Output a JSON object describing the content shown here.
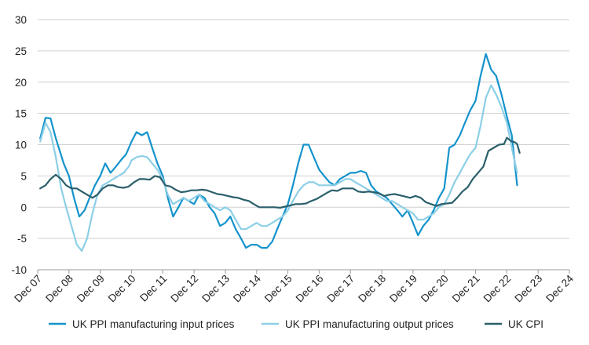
{
  "chart_data": {
    "type": "line",
    "title": "",
    "xlabel": "",
    "ylabel": "",
    "ylim": [
      -10,
      30
    ],
    "yticks": [
      -10,
      -5,
      0,
      5,
      10,
      15,
      20,
      25,
      30
    ],
    "xlim": [
      2007.92,
      2024.92
    ],
    "xticks": [
      {
        "label": "Dec 07",
        "x": 2007.92
      },
      {
        "label": "Dec 08",
        "x": 2008.92
      },
      {
        "label": "Dec 09",
        "x": 2009.92
      },
      {
        "label": "Dec 10",
        "x": 2010.92
      },
      {
        "label": "Dec 11",
        "x": 2011.92
      },
      {
        "label": "Dec 12",
        "x": 2012.92
      },
      {
        "label": "Dec 13",
        "x": 2013.92
      },
      {
        "label": "Dec 14",
        "x": 2014.92
      },
      {
        "label": "Dec 15",
        "x": 2015.92
      },
      {
        "label": "Dec 16",
        "x": 2016.92
      },
      {
        "label": "Dec 17",
        "x": 2017.92
      },
      {
        "label": "Dec 18",
        "x": 2018.92
      },
      {
        "label": "Dec 19",
        "x": 2019.92
      },
      {
        "label": "Dec 20",
        "x": 2020.92
      },
      {
        "label": "Dec 21",
        "x": 2021.92
      },
      {
        "label": "Dec 22",
        "x": 2022.92
      },
      {
        "label": "Dec 23",
        "x": 2023.92
      },
      {
        "label": "Dec 24",
        "x": 2024.92
      }
    ],
    "grid": "horizontal",
    "legend_position": "bottom",
    "series": [
      {
        "name": "UK PPI  manufacturing input prices",
        "color": "#1493cc",
        "points": [
          [
            2008.0,
            11.0
          ],
          [
            2008.17,
            14.3
          ],
          [
            2008.33,
            14.2
          ],
          [
            2008.5,
            11.0
          ],
          [
            2008.75,
            7.0
          ],
          [
            2008.92,
            5.0
          ],
          [
            2009.08,
            1.5
          ],
          [
            2009.25,
            -1.5
          ],
          [
            2009.42,
            -0.5
          ],
          [
            2009.58,
            1.5
          ],
          [
            2009.75,
            3.5
          ],
          [
            2009.92,
            5.0
          ],
          [
            2010.08,
            7.0
          ],
          [
            2010.25,
            5.5
          ],
          [
            2010.42,
            6.5
          ],
          [
            2010.58,
            7.5
          ],
          [
            2010.75,
            8.5
          ],
          [
            2010.92,
            10.5
          ],
          [
            2011.08,
            12.0
          ],
          [
            2011.25,
            11.5
          ],
          [
            2011.42,
            12.0
          ],
          [
            2011.58,
            9.5
          ],
          [
            2011.75,
            7.0
          ],
          [
            2011.92,
            5.0
          ],
          [
            2012.08,
            1.5
          ],
          [
            2012.25,
            -1.5
          ],
          [
            2012.42,
            0.0
          ],
          [
            2012.58,
            1.5
          ],
          [
            2012.75,
            1.0
          ],
          [
            2012.92,
            0.5
          ],
          [
            2013.08,
            2.0
          ],
          [
            2013.25,
            1.5
          ],
          [
            2013.42,
            0.0
          ],
          [
            2013.58,
            -1.0
          ],
          [
            2013.75,
            -3.0
          ],
          [
            2013.92,
            -2.5
          ],
          [
            2014.08,
            -1.5
          ],
          [
            2014.25,
            -3.5
          ],
          [
            2014.42,
            -5.0
          ],
          [
            2014.58,
            -6.5
          ],
          [
            2014.75,
            -6.0
          ],
          [
            2014.92,
            -6.0
          ],
          [
            2015.08,
            -6.5
          ],
          [
            2015.25,
            -6.5
          ],
          [
            2015.42,
            -5.5
          ],
          [
            2015.58,
            -3.5
          ],
          [
            2015.75,
            -1.5
          ],
          [
            2015.92,
            0.5
          ],
          [
            2016.08,
            3.5
          ],
          [
            2016.25,
            7.0
          ],
          [
            2016.42,
            10.0
          ],
          [
            2016.58,
            10.0
          ],
          [
            2016.75,
            8.0
          ],
          [
            2016.92,
            6.0
          ],
          [
            2017.08,
            5.0
          ],
          [
            2017.25,
            4.0
          ],
          [
            2017.42,
            3.5
          ],
          [
            2017.58,
            4.5
          ],
          [
            2017.75,
            5.0
          ],
          [
            2017.92,
            5.5
          ],
          [
            2018.08,
            5.5
          ],
          [
            2018.25,
            5.8
          ],
          [
            2018.42,
            5.5
          ],
          [
            2018.58,
            3.5
          ],
          [
            2018.75,
            2.5
          ],
          [
            2018.92,
            2.0
          ],
          [
            2019.08,
            1.5
          ],
          [
            2019.25,
            0.5
          ],
          [
            2019.42,
            -0.5
          ],
          [
            2019.58,
            -1.5
          ],
          [
            2019.75,
            -0.5
          ],
          [
            2019.92,
            -2.5
          ],
          [
            2020.08,
            -4.5
          ],
          [
            2020.25,
            -3.0
          ],
          [
            2020.42,
            -2.0
          ],
          [
            2020.58,
            -0.5
          ],
          [
            2020.75,
            1.5
          ],
          [
            2020.92,
            3.0
          ],
          [
            2021.08,
            9.5
          ],
          [
            2021.25,
            10.0
          ],
          [
            2021.42,
            11.5
          ],
          [
            2021.58,
            13.5
          ],
          [
            2021.75,
            15.5
          ],
          [
            2021.92,
            17.0
          ],
          [
            2022.08,
            21.0
          ],
          [
            2022.25,
            24.5
          ],
          [
            2022.42,
            22.0
          ],
          [
            2022.58,
            21.0
          ],
          [
            2022.75,
            18.0
          ],
          [
            2022.92,
            14.5
          ],
          [
            2023.08,
            11.5
          ],
          [
            2023.25,
            3.5
          ]
        ]
      },
      {
        "name": "UK PPI  manufacturing output prices",
        "color": "#8ccfe6",
        "points": [
          [
            2008.0,
            10.5
          ],
          [
            2008.17,
            13.5
          ],
          [
            2008.33,
            12.0
          ],
          [
            2008.5,
            8.0
          ],
          [
            2008.67,
            3.0
          ],
          [
            2008.83,
            0.0
          ],
          [
            2009.0,
            -3.0
          ],
          [
            2009.17,
            -6.0
          ],
          [
            2009.33,
            -7.0
          ],
          [
            2009.5,
            -5.0
          ],
          [
            2009.67,
            -1.0
          ],
          [
            2009.83,
            2.0
          ],
          [
            2010.0,
            3.5
          ],
          [
            2010.17,
            4.0
          ],
          [
            2010.33,
            4.5
          ],
          [
            2010.5,
            5.0
          ],
          [
            2010.67,
            5.5
          ],
          [
            2010.83,
            6.5
          ],
          [
            2010.92,
            7.5
          ],
          [
            2011.08,
            8.0
          ],
          [
            2011.25,
            8.2
          ],
          [
            2011.42,
            8.0
          ],
          [
            2011.58,
            7.0
          ],
          [
            2011.75,
            6.0
          ],
          [
            2011.92,
            4.5
          ],
          [
            2012.08,
            2.0
          ],
          [
            2012.25,
            0.5
          ],
          [
            2012.42,
            1.0
          ],
          [
            2012.58,
            1.5
          ],
          [
            2012.75,
            1.0
          ],
          [
            2012.92,
            1.5
          ],
          [
            2013.08,
            2.0
          ],
          [
            2013.25,
            1.0
          ],
          [
            2013.42,
            0.5
          ],
          [
            2013.58,
            0.0
          ],
          [
            2013.75,
            -0.5
          ],
          [
            2013.92,
            0.0
          ],
          [
            2014.08,
            -0.5
          ],
          [
            2014.25,
            -2.0
          ],
          [
            2014.42,
            -3.5
          ],
          [
            2014.58,
            -3.5
          ],
          [
            2014.75,
            -3.0
          ],
          [
            2014.92,
            -2.5
          ],
          [
            2015.08,
            -3.0
          ],
          [
            2015.25,
            -3.0
          ],
          [
            2015.42,
            -2.5
          ],
          [
            2015.58,
            -2.0
          ],
          [
            2015.75,
            -1.5
          ],
          [
            2015.92,
            -0.5
          ],
          [
            2016.08,
            1.0
          ],
          [
            2016.25,
            2.5
          ],
          [
            2016.42,
            3.5
          ],
          [
            2016.58,
            4.0
          ],
          [
            2016.75,
            4.0
          ],
          [
            2016.92,
            3.5
          ],
          [
            2017.08,
            3.5
          ],
          [
            2017.25,
            3.5
          ],
          [
            2017.42,
            3.5
          ],
          [
            2017.58,
            4.0
          ],
          [
            2017.75,
            4.5
          ],
          [
            2017.92,
            4.5
          ],
          [
            2018.08,
            4.0
          ],
          [
            2018.25,
            3.5
          ],
          [
            2018.42,
            3.0
          ],
          [
            2018.58,
            2.5
          ],
          [
            2018.75,
            2.0
          ],
          [
            2018.92,
            1.5
          ],
          [
            2019.08,
            1.0
          ],
          [
            2019.25,
            1.0
          ],
          [
            2019.42,
            0.5
          ],
          [
            2019.58,
            0.0
          ],
          [
            2019.75,
            -0.5
          ],
          [
            2019.92,
            -1.0
          ],
          [
            2020.08,
            -2.0
          ],
          [
            2020.25,
            -2.0
          ],
          [
            2020.42,
            -1.5
          ],
          [
            2020.58,
            -1.0
          ],
          [
            2020.75,
            0.0
          ],
          [
            2020.92,
            0.5
          ],
          [
            2021.08,
            2.0
          ],
          [
            2021.25,
            4.0
          ],
          [
            2021.42,
            5.5
          ],
          [
            2021.58,
            7.0
          ],
          [
            2021.75,
            8.5
          ],
          [
            2021.92,
            9.5
          ],
          [
            2022.08,
            13.0
          ],
          [
            2022.25,
            17.5
          ],
          [
            2022.42,
            19.5
          ],
          [
            2022.58,
            18.0
          ],
          [
            2022.75,
            16.0
          ],
          [
            2022.92,
            13.5
          ],
          [
            2023.08,
            9.5
          ],
          [
            2023.25,
            5.5
          ]
        ]
      },
      {
        "name": "UK CPI",
        "color": "#2a5f6b",
        "points": [
          [
            2008.0,
            3.0
          ],
          [
            2008.17,
            3.5
          ],
          [
            2008.33,
            4.5
          ],
          [
            2008.5,
            5.2
          ],
          [
            2008.67,
            4.5
          ],
          [
            2008.83,
            3.5
          ],
          [
            2009.0,
            3.0
          ],
          [
            2009.17,
            3.0
          ],
          [
            2009.33,
            2.5
          ],
          [
            2009.5,
            2.0
          ],
          [
            2009.67,
            1.5
          ],
          [
            2009.83,
            2.0
          ],
          [
            2010.0,
            3.0
          ],
          [
            2010.17,
            3.5
          ],
          [
            2010.33,
            3.5
          ],
          [
            2010.5,
            3.2
          ],
          [
            2010.67,
            3.1
          ],
          [
            2010.83,
            3.3
          ],
          [
            2011.0,
            4.0
          ],
          [
            2011.17,
            4.5
          ],
          [
            2011.33,
            4.5
          ],
          [
            2011.5,
            4.4
          ],
          [
            2011.67,
            5.0
          ],
          [
            2011.83,
            4.8
          ],
          [
            2012.0,
            3.5
          ],
          [
            2012.17,
            3.3
          ],
          [
            2012.33,
            2.8
          ],
          [
            2012.5,
            2.4
          ],
          [
            2012.67,
            2.5
          ],
          [
            2012.83,
            2.7
          ],
          [
            2013.0,
            2.7
          ],
          [
            2013.17,
            2.8
          ],
          [
            2013.33,
            2.7
          ],
          [
            2013.5,
            2.4
          ],
          [
            2013.67,
            2.1
          ],
          [
            2013.83,
            2.0
          ],
          [
            2014.0,
            1.8
          ],
          [
            2014.17,
            1.6
          ],
          [
            2014.33,
            1.5
          ],
          [
            2014.5,
            1.2
          ],
          [
            2014.67,
            1.0
          ],
          [
            2014.83,
            0.5
          ],
          [
            2015.0,
            0.0
          ],
          [
            2015.17,
            0.0
          ],
          [
            2015.33,
            0.0
          ],
          [
            2015.5,
            0.0
          ],
          [
            2015.67,
            -0.1
          ],
          [
            2015.83,
            0.1
          ],
          [
            2016.0,
            0.3
          ],
          [
            2016.17,
            0.5
          ],
          [
            2016.33,
            0.5
          ],
          [
            2016.5,
            0.6
          ],
          [
            2016.67,
            1.0
          ],
          [
            2016.83,
            1.3
          ],
          [
            2017.0,
            1.8
          ],
          [
            2017.17,
            2.3
          ],
          [
            2017.33,
            2.7
          ],
          [
            2017.5,
            2.6
          ],
          [
            2017.67,
            3.0
          ],
          [
            2017.83,
            3.0
          ],
          [
            2018.0,
            3.0
          ],
          [
            2018.17,
            2.5
          ],
          [
            2018.33,
            2.4
          ],
          [
            2018.5,
            2.5
          ],
          [
            2018.67,
            2.4
          ],
          [
            2018.83,
            2.2
          ],
          [
            2019.0,
            1.8
          ],
          [
            2019.17,
            2.0
          ],
          [
            2019.33,
            2.1
          ],
          [
            2019.5,
            1.9
          ],
          [
            2019.67,
            1.7
          ],
          [
            2019.83,
            1.5
          ],
          [
            2020.0,
            1.8
          ],
          [
            2020.17,
            1.5
          ],
          [
            2020.33,
            0.8
          ],
          [
            2020.5,
            0.5
          ],
          [
            2020.67,
            0.2
          ],
          [
            2020.83,
            0.5
          ],
          [
            2021.0,
            0.6
          ],
          [
            2021.17,
            0.7
          ],
          [
            2021.33,
            1.5
          ],
          [
            2021.5,
            2.5
          ],
          [
            2021.67,
            3.2
          ],
          [
            2021.83,
            4.5
          ],
          [
            2022.0,
            5.5
          ],
          [
            2022.17,
            6.5
          ],
          [
            2022.33,
            9.0
          ],
          [
            2022.5,
            9.5
          ],
          [
            2022.67,
            10.0
          ],
          [
            2022.83,
            10.1
          ],
          [
            2022.92,
            11.1
          ],
          [
            2023.08,
            10.5
          ],
          [
            2023.17,
            10.4
          ],
          [
            2023.25,
            10.1
          ],
          [
            2023.33,
            8.7
          ]
        ]
      }
    ]
  }
}
